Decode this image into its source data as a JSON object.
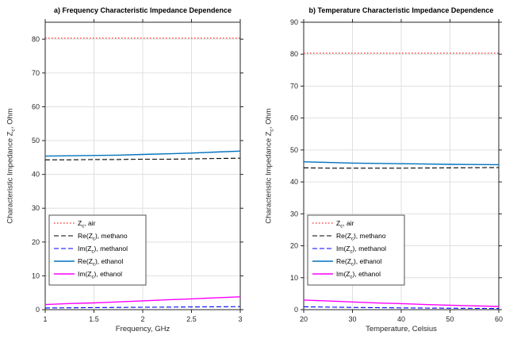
{
  "figure": {
    "background": "#ffffff"
  },
  "chart_data": [
    {
      "type": "line",
      "title": "a) Frequency Characteristic Impedance Dependence",
      "xlabel": "Frequency, GHz",
      "ylabel": "Characteristic Impedance Z_c, Ohm",
      "xlim": [
        1,
        3
      ],
      "ylim": [
        0,
        85
      ],
      "xticks": [
        1,
        1.5,
        2,
        2.5,
        3
      ],
      "yticks": [
        0,
        10,
        20,
        30,
        40,
        50,
        60,
        70,
        80
      ],
      "grid": true,
      "legend_position": "lower-left",
      "x": [
        1,
        1.25,
        1.5,
        1.75,
        2,
        2.25,
        2.5,
        2.75,
        3
      ],
      "series": [
        {
          "name": "Z_c, air",
          "color": "#ff0000",
          "style": "dotted",
          "values": [
            80.3,
            80.3,
            80.3,
            80.3,
            80.3,
            80.3,
            80.3,
            80.3,
            80.3
          ]
        },
        {
          "name": "Re(Z_c), methano",
          "color": "#000000",
          "style": "dashed",
          "values": [
            44.3,
            44.3,
            44.4,
            44.4,
            44.5,
            44.5,
            44.6,
            44.7,
            44.8
          ]
        },
        {
          "name": "Im(Z_c), methanol",
          "color": "#0000ff",
          "style": "dashed",
          "values": [
            0.5,
            0.55,
            0.6,
            0.65,
            0.7,
            0.75,
            0.8,
            0.85,
            0.9
          ]
        },
        {
          "name": "Re(Z_c), ethanol",
          "color": "#0072BD",
          "style": "solid",
          "values": [
            45.4,
            45.5,
            45.6,
            45.7,
            45.9,
            46.1,
            46.3,
            46.6,
            46.9
          ]
        },
        {
          "name": "Im(Z_c), ethanol",
          "color": "#ff00ff",
          "style": "solid",
          "values": [
            1.5,
            1.8,
            2.0,
            2.3,
            2.6,
            2.9,
            3.2,
            3.5,
            3.8
          ]
        }
      ]
    },
    {
      "type": "line",
      "title": "b) Temperature Characteristic Impedance Dependence",
      "xlabel": "Temperature, Celsius",
      "ylabel": "Characteristic Impedance Z_c, Ohm",
      "xlim": [
        20,
        60
      ],
      "ylim": [
        0,
        90
      ],
      "xticks": [
        20,
        30,
        40,
        50,
        60
      ],
      "yticks": [
        0,
        10,
        20,
        30,
        40,
        50,
        60,
        70,
        80,
        90
      ],
      "grid": true,
      "legend_position": "lower-left",
      "x": [
        20,
        25,
        30,
        35,
        40,
        45,
        50,
        55,
        60
      ],
      "series": [
        {
          "name": "Z_c, air",
          "color": "#ff0000",
          "style": "dotted",
          "values": [
            80.3,
            80.3,
            80.3,
            80.3,
            80.3,
            80.3,
            80.3,
            80.3,
            80.3
          ]
        },
        {
          "name": "Re(Z_c), methano",
          "color": "#000000",
          "style": "dashed",
          "values": [
            44.4,
            44.3,
            44.3,
            44.3,
            44.3,
            44.35,
            44.4,
            44.45,
            44.5
          ]
        },
        {
          "name": "Im(Z_c), methanol",
          "color": "#0000ff",
          "style": "dashed",
          "values": [
            0.9,
            0.8,
            0.7,
            0.62,
            0.55,
            0.5,
            0.45,
            0.4,
            0.35
          ]
        },
        {
          "name": "Re(Z_c), ethanol",
          "color": "#0072BD",
          "style": "solid",
          "values": [
            46.3,
            46.1,
            45.9,
            45.8,
            45.7,
            45.6,
            45.5,
            45.45,
            45.4
          ]
        },
        {
          "name": "Im(Z_c), ethanol",
          "color": "#ff00ff",
          "style": "solid",
          "values": [
            3.0,
            2.7,
            2.4,
            2.1,
            1.9,
            1.6,
            1.4,
            1.2,
            1.0
          ]
        }
      ]
    }
  ]
}
